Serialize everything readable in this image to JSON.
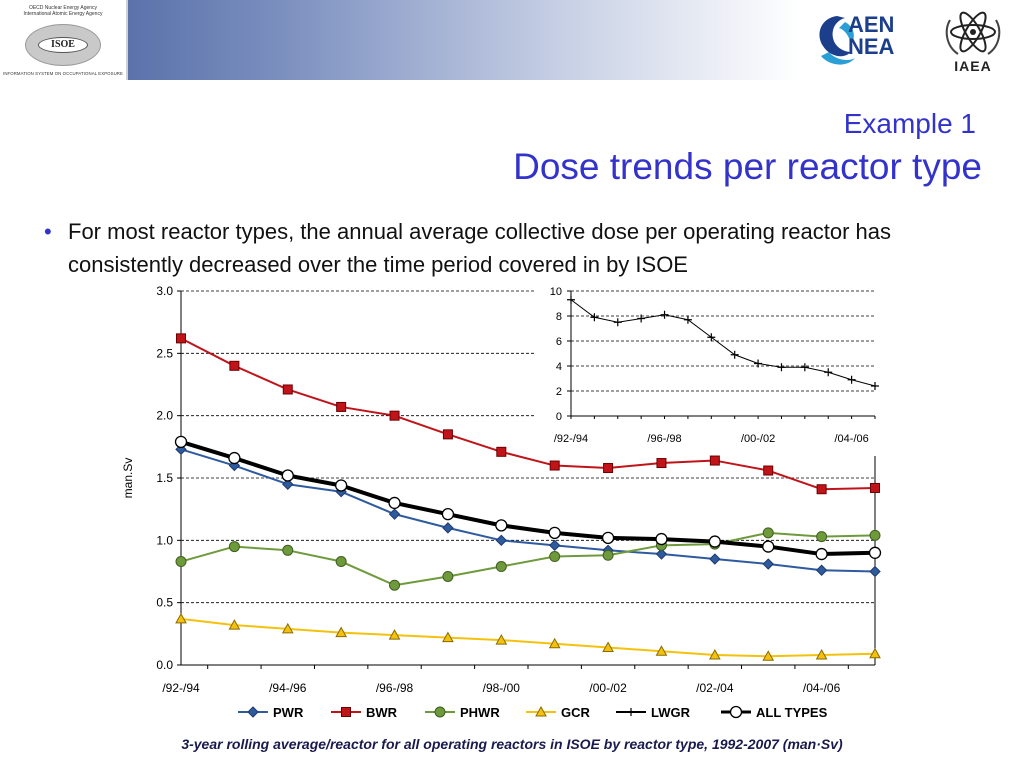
{
  "header": {
    "isoe_top_line1": "OECD Nuclear Energy Agency",
    "isoe_top_line2": "International Atomic Energy Agency",
    "isoe_badge": "ISOE",
    "isoe_bottom": "INFORMATION SYSTEM ON OCCUPATIONAL EXPOSURE",
    "aen_line1": "AEN",
    "aen_line2": "NEA",
    "iaea_label": "IAEA"
  },
  "slide": {
    "subtitle": "Example 1",
    "title": "Dose trends per reactor type",
    "bullet": "For most reactor types, the annual average collective dose per operating reactor has consistently decreased over the time period covered in by ISOE",
    "caption": "3-year rolling average/reactor for all operating reactors in ISOE by reactor type, 1992-2007 (man·Sv)"
  },
  "colors": {
    "title": "#3333cc",
    "pwr": "#2e5a9e",
    "bwr": "#c0141a",
    "phwr": "#6f9a3c",
    "gcr": "#f4c20d",
    "lwgr": "#000000",
    "all_types": "#000000"
  },
  "chart_data": [
    {
      "type": "line",
      "ylabel": "man.Sv",
      "ylim": [
        0,
        3.0
      ],
      "yticks": [
        "0.0",
        "0.5",
        "1.0",
        "1.5",
        "2.0",
        "2.5",
        "3.0"
      ],
      "xtick_labels": [
        "/92-/94",
        "/94-/96",
        "/96-/98",
        "/98-/00",
        "/00-/02",
        "/02-/04",
        "/04-/06"
      ],
      "grid": "horizontal dashed",
      "legend_position": "bottom",
      "series": [
        {
          "name": "PWR",
          "marker": "diamond",
          "values": [
            1.73,
            1.6,
            1.45,
            1.39,
            1.21,
            1.1,
            1.0,
            0.96,
            0.92,
            0.89,
            0.85,
            0.81,
            0.76,
            0.75
          ]
        },
        {
          "name": "BWR",
          "marker": "square",
          "values": [
            2.62,
            2.4,
            2.21,
            2.07,
            2.0,
            1.85,
            1.71,
            1.6,
            1.58,
            1.62,
            1.64,
            1.56,
            1.41,
            1.42
          ]
        },
        {
          "name": "PHWR",
          "marker": "circle",
          "values": [
            0.83,
            0.95,
            0.92,
            0.83,
            0.64,
            0.71,
            0.79,
            0.87,
            0.88,
            0.96,
            0.97,
            1.06,
            1.03,
            1.04
          ]
        },
        {
          "name": "GCR",
          "marker": "triangle",
          "values": [
            0.37,
            0.32,
            0.29,
            0.26,
            0.24,
            0.22,
            0.2,
            0.17,
            0.14,
            0.11,
            0.08,
            0.07,
            0.08,
            0.09
          ]
        },
        {
          "name": "LWGR",
          "marker": "plus",
          "values": []
        },
        {
          "name": "ALL TYPES",
          "marker": "open-circle",
          "values": [
            1.79,
            1.66,
            1.52,
            1.44,
            1.3,
            1.21,
            1.12,
            1.06,
            1.02,
            1.01,
            0.99,
            0.95,
            0.89,
            0.9
          ]
        }
      ]
    },
    {
      "type": "line",
      "ylim": [
        0,
        10
      ],
      "yticks": [
        "0",
        "2",
        "4",
        "6",
        "8",
        "10"
      ],
      "xtick_labels": [
        "/92-/94",
        "/96-/98",
        "/00-/02",
        "/04-/06"
      ],
      "grid": "horizontal dashed",
      "series": [
        {
          "name": "LWGR",
          "marker": "plus",
          "values": [
            9.3,
            7.9,
            7.5,
            7.8,
            8.1,
            7.7,
            6.3,
            4.9,
            4.2,
            3.9,
            3.9,
            3.5,
            2.9,
            2.4
          ]
        }
      ]
    }
  ]
}
